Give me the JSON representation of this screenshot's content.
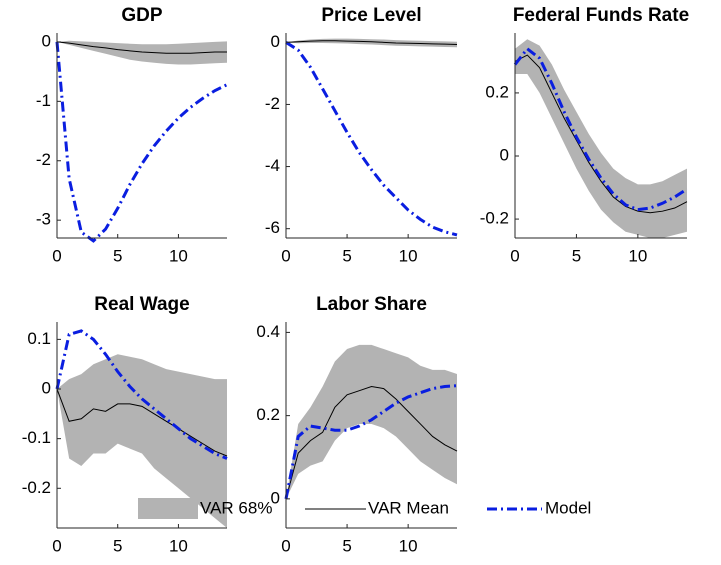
{
  "legend": {
    "series": [
      {
        "name": "VAR 68%",
        "color": "#b3b3b3"
      },
      {
        "name": "VAR Mean",
        "color": "#000000"
      },
      {
        "name": "Model",
        "color": "#0a1ee0"
      }
    ]
  },
  "chart_data": [
    {
      "type": "line",
      "title": "GDP",
      "x": [
        0,
        1,
        2,
        3,
        4,
        5,
        6,
        7,
        8,
        9,
        10,
        11,
        12,
        13,
        14
      ],
      "xlim": [
        0,
        14
      ],
      "xticks": [
        0,
        5,
        10
      ],
      "ylim": [
        -3.3,
        0.15
      ],
      "yticks": [
        -3,
        -2,
        -1,
        0
      ],
      "series": [
        {
          "values": [
            0,
            -0.05,
            -0.1,
            -0.15,
            -0.2,
            -0.25,
            -0.3,
            -0.33,
            -0.35,
            -0.37,
            -0.38,
            -0.38,
            -0.37,
            -0.36,
            -0.35
          ],
          "upper": [
            0,
            0.02,
            0.01,
            0,
            -0.01,
            -0.02,
            -0.03,
            -0.04,
            -0.04,
            -0.04,
            -0.03,
            -0.02,
            -0.01,
            0,
            0.01
          ]
        },
        {
          "values": [
            0,
            -0.02,
            -0.05,
            -0.08,
            -0.1,
            -0.13,
            -0.15,
            -0.17,
            -0.18,
            -0.19,
            -0.19,
            -0.19,
            -0.18,
            -0.17,
            -0.17
          ]
        },
        {
          "values": [
            0,
            -2.3,
            -3.2,
            -3.35,
            -3.15,
            -2.8,
            -2.4,
            -2.05,
            -1.75,
            -1.5,
            -1.28,
            -1.1,
            -0.95,
            -0.82,
            -0.72
          ]
        }
      ]
    },
    {
      "type": "line",
      "title": "Price Level",
      "x": [
        0,
        1,
        2,
        3,
        4,
        5,
        6,
        7,
        8,
        9,
        10,
        11,
        12,
        13,
        14
      ],
      "xlim": [
        0,
        14
      ],
      "xticks": [
        0,
        5,
        10
      ],
      "ylim": [
        -6.3,
        0.3
      ],
      "yticks": [
        -6,
        -4,
        -2,
        0
      ],
      "series": [
        {
          "values": [
            0,
            -0.03,
            -0.02,
            -0.02,
            -0.03,
            -0.04,
            -0.06,
            -0.07,
            -0.09,
            -0.11,
            -0.12,
            -0.13,
            -0.14,
            -0.15,
            -0.16
          ],
          "upper": [
            0,
            0.06,
            0.09,
            0.11,
            0.12,
            0.12,
            0.11,
            0.1,
            0.09,
            0.07,
            0.06,
            0.05,
            0.04,
            0.03,
            0.02
          ]
        },
        {
          "values": [
            0,
            0.02,
            0.04,
            0.05,
            0.05,
            0.04,
            0.03,
            0.02,
            0,
            -0.02,
            -0.03,
            -0.04,
            -0.05,
            -0.06,
            -0.07
          ]
        },
        {
          "values": [
            0,
            -0.25,
            -0.8,
            -1.5,
            -2.2,
            -2.9,
            -3.55,
            -4.1,
            -4.6,
            -5.0,
            -5.4,
            -5.7,
            -5.95,
            -6.1,
            -6.2
          ]
        }
      ]
    },
    {
      "type": "line",
      "title": "Federal Funds Rate",
      "x": [
        0,
        1,
        2,
        3,
        4,
        5,
        6,
        7,
        8,
        9,
        10,
        11,
        12,
        13,
        14
      ],
      "xlim": [
        0,
        14
      ],
      "xticks": [
        0,
        5,
        10
      ],
      "ylim": [
        -0.26,
        0.39
      ],
      "yticks": [
        -0.2,
        0,
        0.2
      ],
      "series": [
        {
          "values": [
            0.26,
            0.26,
            0.2,
            0.12,
            0.04,
            -0.04,
            -0.11,
            -0.17,
            -0.21,
            -0.24,
            -0.25,
            -0.26,
            -0.26,
            -0.25,
            -0.24
          ],
          "upper": [
            0.34,
            0.37,
            0.35,
            0.29,
            0.21,
            0.14,
            0.07,
            0.01,
            -0.04,
            -0.07,
            -0.09,
            -0.09,
            -0.08,
            -0.06,
            -0.04
          ]
        },
        {
          "values": [
            0.3,
            0.32,
            0.28,
            0.2,
            0.12,
            0.05,
            -0.02,
            -0.08,
            -0.13,
            -0.16,
            -0.175,
            -0.18,
            -0.175,
            -0.165,
            -0.145
          ]
        },
        {
          "values": [
            0.29,
            0.34,
            0.31,
            0.23,
            0.14,
            0.06,
            -0.01,
            -0.07,
            -0.12,
            -0.155,
            -0.17,
            -0.165,
            -0.15,
            -0.13,
            -0.105
          ]
        }
      ]
    },
    {
      "type": "line",
      "title": "Real Wage",
      "x": [
        0,
        1,
        2,
        3,
        4,
        5,
        6,
        7,
        8,
        9,
        10,
        11,
        12,
        13,
        14
      ],
      "xlim": [
        0,
        14
      ],
      "xticks": [
        0,
        5,
        10
      ],
      "ylim": [
        -0.28,
        0.135
      ],
      "yticks": [
        -0.2,
        -0.1,
        0,
        0.1
      ],
      "series": [
        {
          "values": [
            0,
            -0.14,
            -0.155,
            -0.13,
            -0.13,
            -0.11,
            -0.12,
            -0.13,
            -0.16,
            -0.18,
            -0.2,
            -0.22,
            -0.24,
            -0.26,
            -0.28
          ],
          "upper": [
            0,
            0.02,
            0.03,
            0.05,
            0.06,
            0.07,
            0.065,
            0.06,
            0.05,
            0.04,
            0.035,
            0.03,
            0.025,
            0.02,
            0.02
          ]
        },
        {
          "values": [
            0,
            -0.065,
            -0.06,
            -0.04,
            -0.045,
            -0.03,
            -0.03,
            -0.035,
            -0.05,
            -0.065,
            -0.08,
            -0.095,
            -0.11,
            -0.125,
            -0.135
          ]
        },
        {
          "values": [
            0,
            0.11,
            0.117,
            0.1,
            0.07,
            0.035,
            0.005,
            -0.02,
            -0.04,
            -0.06,
            -0.08,
            -0.1,
            -0.115,
            -0.13,
            -0.14
          ]
        }
      ]
    },
    {
      "type": "line",
      "title": "Labor Share",
      "x": [
        0,
        1,
        2,
        3,
        4,
        5,
        6,
        7,
        8,
        9,
        10,
        11,
        12,
        13,
        14
      ],
      "xlim": [
        0,
        14
      ],
      "xticks": [
        0,
        5,
        10
      ],
      "ylim": [
        -0.07,
        0.425
      ],
      "yticks": [
        0,
        0.2,
        0.4
      ],
      "series": [
        {
          "values": [
            0,
            0.06,
            0.08,
            0.09,
            0.14,
            0.17,
            0.18,
            0.18,
            0.17,
            0.15,
            0.12,
            0.09,
            0.07,
            0.05,
            0.035
          ],
          "upper": [
            0,
            0.18,
            0.22,
            0.27,
            0.33,
            0.36,
            0.37,
            0.37,
            0.36,
            0.35,
            0.34,
            0.32,
            0.31,
            0.31,
            0.3
          ]
        },
        {
          "values": [
            0,
            0.11,
            0.14,
            0.16,
            0.22,
            0.25,
            0.26,
            0.27,
            0.265,
            0.24,
            0.21,
            0.18,
            0.15,
            0.13,
            0.115
          ]
        },
        {
          "values": [
            0,
            0.15,
            0.175,
            0.17,
            0.165,
            0.165,
            0.175,
            0.19,
            0.21,
            0.23,
            0.245,
            0.255,
            0.265,
            0.27,
            0.272
          ]
        }
      ]
    }
  ]
}
